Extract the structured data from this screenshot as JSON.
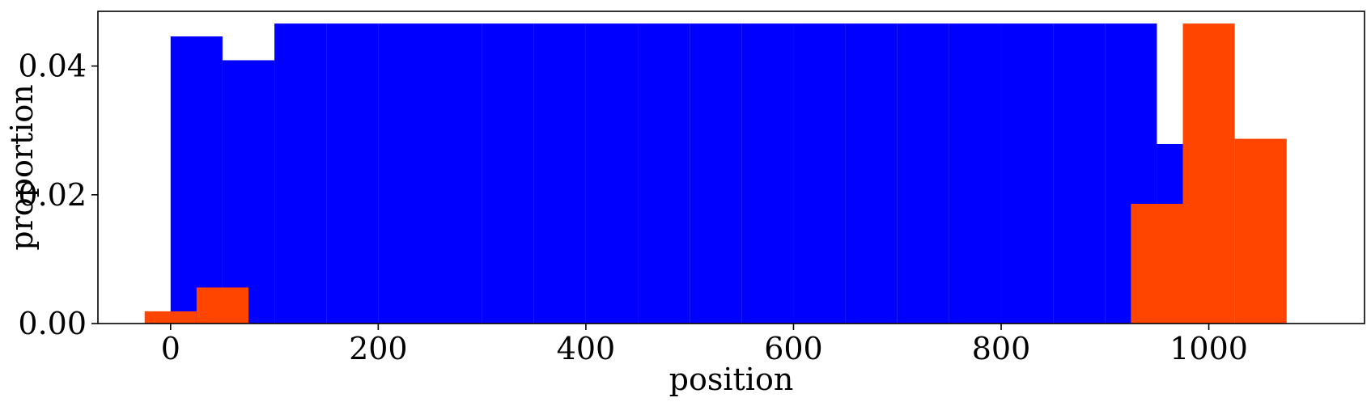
{
  "chart_data": {
    "type": "bar",
    "title": "",
    "xlabel": "position",
    "ylabel": "proportion",
    "xlim": [
      -70,
      1150
    ],
    "ylim": [
      0,
      0.0485
    ],
    "bar_width": 50,
    "x_ticks": [
      0,
      200,
      400,
      600,
      800,
      1000
    ],
    "x_tick_labels": [
      "0",
      "200",
      "400",
      "600",
      "800",
      "1000"
    ],
    "y_ticks": [
      0,
      0.02,
      0.04
    ],
    "y_tick_labels": [
      "0.00",
      "0.02",
      "0.04"
    ],
    "grid": false,
    "legend": "none",
    "series": [
      {
        "color": "#0000ff",
        "bars": [
          {
            "x": 25,
            "value": 0.0446
          },
          {
            "x": 75,
            "value": 0.0409
          },
          {
            "x": 125,
            "value": 0.0466
          },
          {
            "x": 175,
            "value": 0.0466
          },
          {
            "x": 225,
            "value": 0.0466
          },
          {
            "x": 275,
            "value": 0.0466
          },
          {
            "x": 325,
            "value": 0.0466
          },
          {
            "x": 375,
            "value": 0.0466
          },
          {
            "x": 425,
            "value": 0.0466
          },
          {
            "x": 475,
            "value": 0.0466
          },
          {
            "x": 525,
            "value": 0.0466
          },
          {
            "x": 575,
            "value": 0.0466
          },
          {
            "x": 625,
            "value": 0.0466
          },
          {
            "x": 675,
            "value": 0.0466
          },
          {
            "x": 725,
            "value": 0.0466
          },
          {
            "x": 775,
            "value": 0.0466
          },
          {
            "x": 825,
            "value": 0.0466
          },
          {
            "x": 875,
            "value": 0.0466
          },
          {
            "x": 925,
            "value": 0.0466
          },
          {
            "x": 975,
            "value": 0.0279
          }
        ]
      },
      {
        "color": "#ff4500",
        "bars": [
          {
            "x": 0,
            "value": 0.0019
          },
          {
            "x": 50,
            "value": 0.0056
          },
          {
            "x": 950,
            "value": 0.0186
          },
          {
            "x": 1000,
            "value": 0.0466
          },
          {
            "x": 1050,
            "value": 0.0287
          }
        ]
      }
    ]
  }
}
